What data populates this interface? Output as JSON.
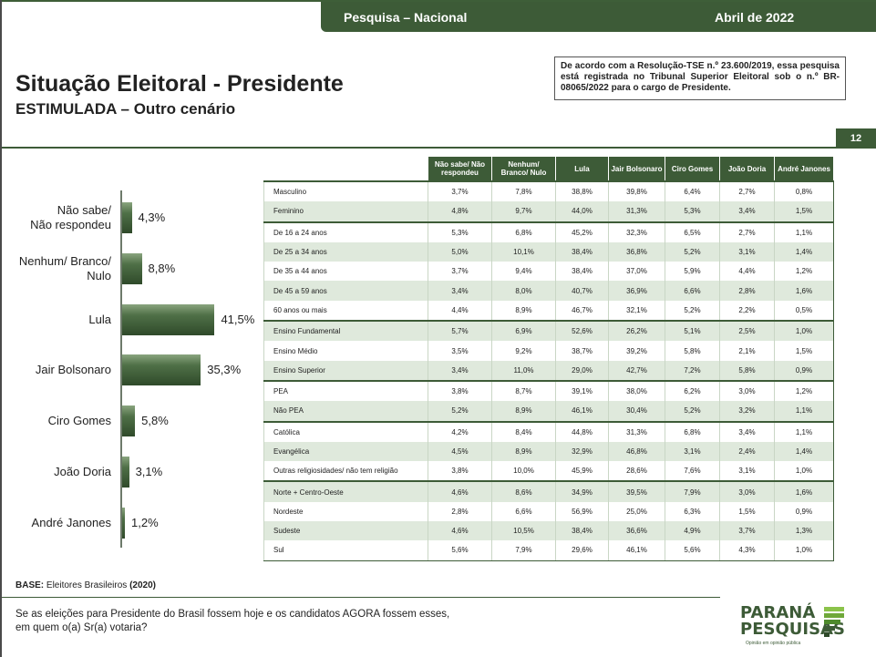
{
  "header": {
    "left_label": "Pesquisa – Nacional",
    "right_label": "Abril de 2022"
  },
  "title": "Situação Eleitoral - Presidente",
  "subtitle": "ESTIMULADA – Outro cenário",
  "tse_notice": "De acordo com a Resolução-TSE n.º 23.600/2019, essa pesquisa está registrada no Tribunal Superior Eleitoral sob o n.º BR-08065/2022 para o cargo de Presidente.",
  "page_number": "12",
  "chart_data": {
    "type": "bar",
    "orientation": "horizontal",
    "categories": [
      "Não sabe/ Não respondeu",
      "Nenhum/ Branco/ Nulo",
      "Lula",
      "Jair Bolsonaro",
      "Ciro Gomes",
      "João Doria",
      "André Janones"
    ],
    "values": [
      4.3,
      8.8,
      41.5,
      35.3,
      5.8,
      3.1,
      1.2
    ],
    "value_labels": [
      "4,3%",
      "8,8%",
      "41,5%",
      "35,3%",
      "5,8%",
      "3,1%",
      "1,2%"
    ],
    "category_lines": [
      [
        "Não sabe/",
        "Não respondeu"
      ],
      [
        "Nenhum/ Branco/",
        "Nulo"
      ],
      [
        "Lula"
      ],
      [
        "Jair Bolsonaro"
      ],
      [
        "Ciro Gomes"
      ],
      [
        "João Doria"
      ],
      [
        "André Janones"
      ]
    ],
    "unit": "%",
    "xlim": [
      0,
      45
    ],
    "bar_color": "#3d5b37"
  },
  "table": {
    "columns": [
      "Não sabe/ Não respondeu",
      "Nenhum/ Branco/ Nulo",
      "Lula",
      "Jair Bolsonaro",
      "Ciro Gomes",
      "João Doria",
      "André Janones"
    ],
    "rows": [
      {
        "label": "Masculino",
        "values": [
          "3,7%",
          "7,8%",
          "38,8%",
          "39,8%",
          "6,4%",
          "2,7%",
          "0,8%"
        ],
        "group_start": true
      },
      {
        "label": "Feminino",
        "values": [
          "4,8%",
          "9,7%",
          "44,0%",
          "31,3%",
          "5,3%",
          "3,4%",
          "1,5%"
        ]
      },
      {
        "label": "De 16 a 24 anos",
        "values": [
          "5,3%",
          "6,8%",
          "45,2%",
          "32,3%",
          "6,5%",
          "2,7%",
          "1,1%"
        ],
        "group_start": true
      },
      {
        "label": "De 25 a 34 anos",
        "values": [
          "5,0%",
          "10,1%",
          "38,4%",
          "36,8%",
          "5,2%",
          "3,1%",
          "1,4%"
        ]
      },
      {
        "label": "De 35 a 44 anos",
        "values": [
          "3,7%",
          "9,4%",
          "38,4%",
          "37,0%",
          "5,9%",
          "4,4%",
          "1,2%"
        ]
      },
      {
        "label": "De 45 a 59 anos",
        "values": [
          "3,4%",
          "8,0%",
          "40,7%",
          "36,9%",
          "6,6%",
          "2,8%",
          "1,6%"
        ]
      },
      {
        "label": "60 anos ou mais",
        "values": [
          "4,4%",
          "8,9%",
          "46,7%",
          "32,1%",
          "5,2%",
          "2,2%",
          "0,5%"
        ]
      },
      {
        "label": "Ensino Fundamental",
        "values": [
          "5,7%",
          "6,9%",
          "52,6%",
          "26,2%",
          "5,1%",
          "2,5%",
          "1,0%"
        ],
        "group_start": true
      },
      {
        "label": "Ensino Médio",
        "values": [
          "3,5%",
          "9,2%",
          "38,7%",
          "39,2%",
          "5,8%",
          "2,1%",
          "1,5%"
        ]
      },
      {
        "label": "Ensino Superior",
        "values": [
          "3,4%",
          "11,0%",
          "29,0%",
          "42,7%",
          "7,2%",
          "5,8%",
          "0,9%"
        ]
      },
      {
        "label": "PEA",
        "values": [
          "3,8%",
          "8,7%",
          "39,1%",
          "38,0%",
          "6,2%",
          "3,0%",
          "1,2%"
        ],
        "group_start": true
      },
      {
        "label": "Não PEA",
        "values": [
          "5,2%",
          "8,9%",
          "46,1%",
          "30,4%",
          "5,2%",
          "3,2%",
          "1,1%"
        ]
      },
      {
        "label": "Católica",
        "values": [
          "4,2%",
          "8,4%",
          "44,8%",
          "31,3%",
          "6,8%",
          "3,4%",
          "1,1%"
        ],
        "group_start": true
      },
      {
        "label": "Evangélica",
        "values": [
          "4,5%",
          "8,9%",
          "32,9%",
          "46,8%",
          "3,1%",
          "2,4%",
          "1,4%"
        ]
      },
      {
        "label": "Outras religiosidades/ não tem religião",
        "values": [
          "3,8%",
          "10,0%",
          "45,9%",
          "28,6%",
          "7,6%",
          "3,1%",
          "1,0%"
        ]
      },
      {
        "label": "Norte + Centro-Oeste",
        "values": [
          "4,6%",
          "8,6%",
          "34,9%",
          "39,5%",
          "7,9%",
          "3,0%",
          "1,6%"
        ],
        "group_start": true
      },
      {
        "label": "Nordeste",
        "values": [
          "2,8%",
          "6,6%",
          "56,9%",
          "25,0%",
          "6,3%",
          "1,5%",
          "0,9%"
        ]
      },
      {
        "label": "Sudeste",
        "values": [
          "4,6%",
          "10,5%",
          "38,4%",
          "36,6%",
          "4,9%",
          "3,7%",
          "1,3%"
        ]
      },
      {
        "label": "Sul",
        "values": [
          "5,6%",
          "7,9%",
          "29,6%",
          "46,1%",
          "5,6%",
          "4,3%",
          "1,0%"
        ]
      }
    ]
  },
  "base": {
    "label": "BASE:",
    "text": "Eleitores Brasileiros",
    "count": "(2020)"
  },
  "question": {
    "line1": "Se as eleições para Presidente do Brasil fossem hoje e os candidatos AGORA fossem esses,",
    "line2": "em quem o(a) Sr(a) votaria?"
  },
  "logo": {
    "line1": "PARANÁ",
    "line2": "PESQUISAS",
    "tagline": "Opinião em opinião pública"
  }
}
